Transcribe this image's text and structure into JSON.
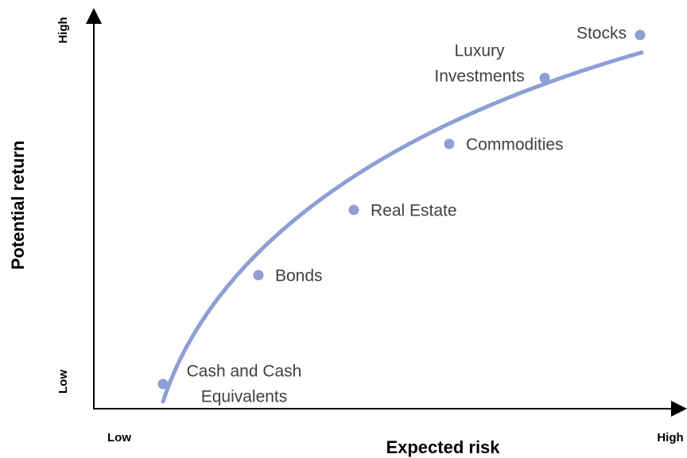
{
  "axes": {
    "y_title": "Potential return",
    "y_low": "Low",
    "y_high": "High",
    "x_title": "Expected risk",
    "x_low": "Low",
    "x_high": "High"
  },
  "nodes": [
    {
      "label": [
        "Cash and Cash",
        "Equivalents"
      ]
    },
    {
      "label": [
        "Bonds"
      ]
    },
    {
      "label": [
        "Real Estate"
      ]
    },
    {
      "label": [
        "Commodities"
      ]
    },
    {
      "label": [
        "Luxury",
        "Investments"
      ]
    },
    {
      "label": [
        "Stocks"
      ]
    }
  ]
}
